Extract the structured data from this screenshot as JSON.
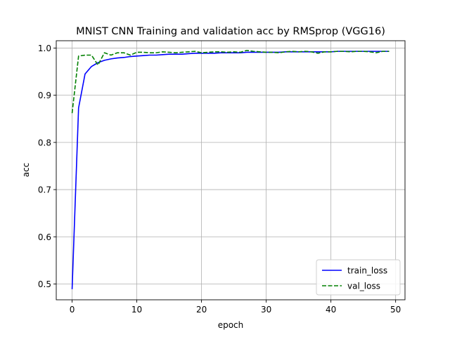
{
  "chart_data": {
    "type": "line",
    "title": "MNIST CNN Training and validation acc by RMSprop (VGG16)",
    "xlabel": "epoch",
    "ylabel": "acc",
    "xlim": [
      -2.45,
      51.45
    ],
    "ylim": [
      0.4665,
      1.0155
    ],
    "xticks": [
      0,
      10,
      20,
      30,
      40,
      50
    ],
    "yticks": [
      0.5,
      0.6,
      0.7,
      0.8,
      0.9,
      1.0
    ],
    "xtick_labels": [
      "0",
      "10",
      "20",
      "30",
      "40",
      "50"
    ],
    "ytick_labels": [
      "0.5",
      "0.6",
      "0.7",
      "0.8",
      "0.9",
      "1.0"
    ],
    "grid": true,
    "legend_position": "lower-right",
    "x": [
      0,
      1,
      2,
      3,
      4,
      5,
      6,
      7,
      8,
      9,
      10,
      11,
      12,
      13,
      14,
      15,
      16,
      17,
      18,
      19,
      20,
      21,
      22,
      23,
      24,
      25,
      26,
      27,
      28,
      29,
      30,
      31,
      32,
      33,
      34,
      35,
      36,
      37,
      38,
      39,
      40,
      41,
      42,
      43,
      44,
      45,
      46,
      47,
      48,
      49
    ],
    "series": [
      {
        "name": "train_loss",
        "color": "#0000ff",
        "style": "solid",
        "values": [
          0.489,
          0.873,
          0.945,
          0.961,
          0.969,
          0.974,
          0.977,
          0.979,
          0.98,
          0.982,
          0.983,
          0.984,
          0.985,
          0.985,
          0.986,
          0.987,
          0.987,
          0.987,
          0.988,
          0.989,
          0.989,
          0.989,
          0.989,
          0.99,
          0.99,
          0.99,
          0.99,
          0.991,
          0.991,
          0.991,
          0.991,
          0.991,
          0.991,
          0.992,
          0.992,
          0.992,
          0.992,
          0.992,
          0.992,
          0.992,
          0.992,
          0.993,
          0.993,
          0.993,
          0.993,
          0.993,
          0.993,
          0.993,
          0.993,
          0.993
        ]
      },
      {
        "name": "val_loss",
        "color": "#008000",
        "style": "dashed",
        "values": [
          0.862,
          0.983,
          0.985,
          0.985,
          0.964,
          0.99,
          0.985,
          0.99,
          0.99,
          0.985,
          0.991,
          0.991,
          0.99,
          0.99,
          0.992,
          0.991,
          0.99,
          0.991,
          0.992,
          0.993,
          0.99,
          0.991,
          0.992,
          0.992,
          0.991,
          0.992,
          0.991,
          0.995,
          0.993,
          0.992,
          0.991,
          0.991,
          0.99,
          0.992,
          0.993,
          0.992,
          0.993,
          0.992,
          0.989,
          0.992,
          0.992,
          0.993,
          0.993,
          0.992,
          0.993,
          0.993,
          0.992,
          0.99,
          0.993,
          0.993
        ]
      }
    ]
  }
}
